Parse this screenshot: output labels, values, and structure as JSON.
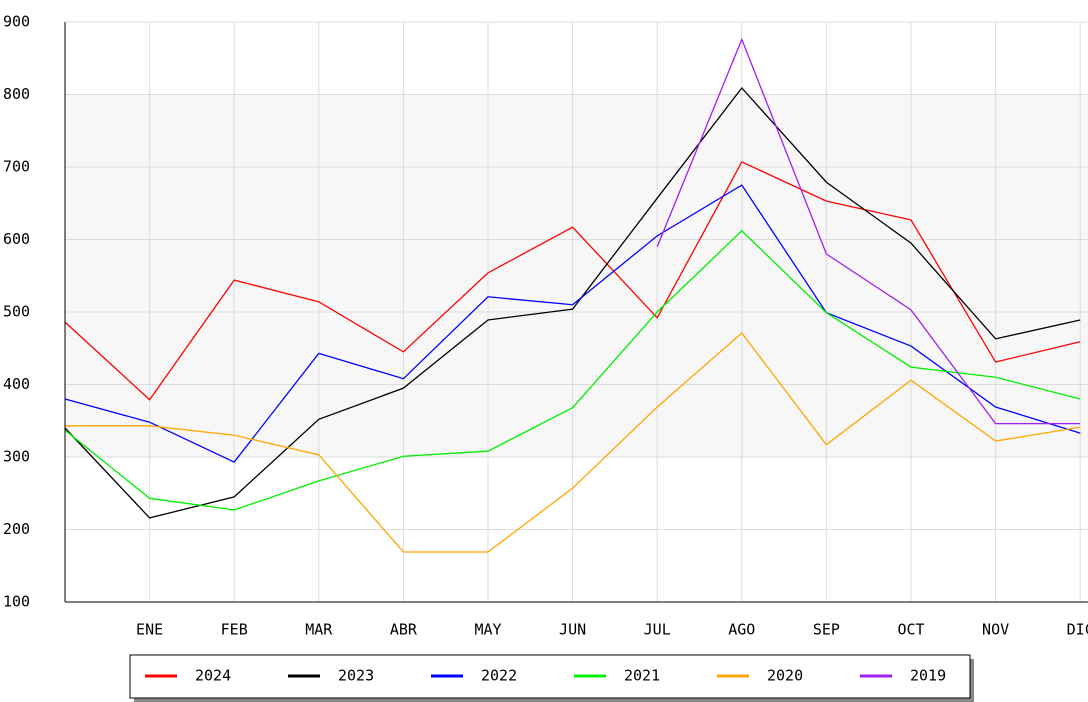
{
  "chart_data": {
    "type": "line",
    "categories": [
      null,
      "ENE",
      "FEB",
      "MAR",
      "ABR",
      "MAY",
      "JUN",
      "JUL",
      "AGO",
      "SEP",
      "OCT",
      "NOV",
      "DIC"
    ],
    "series": [
      {
        "name": "2024",
        "color": "#ff0000",
        "values": [
          486,
          379,
          544,
          514,
          445,
          554,
          617,
          492,
          707,
          653,
          627,
          431,
          459
        ]
      },
      {
        "name": "2023",
        "color": "#000000",
        "values": [
          340,
          216,
          245,
          352,
          395,
          489,
          504,
          657,
          809,
          679,
          595,
          463,
          489
        ]
      },
      {
        "name": "2022",
        "color": "#0000ff",
        "values": [
          380,
          348,
          293,
          443,
          408,
          521,
          510,
          605,
          675,
          499,
          453,
          369,
          333
        ]
      },
      {
        "name": "2021",
        "color": "#00ee00",
        "values": [
          337,
          243,
          227,
          267,
          301,
          308,
          368,
          500,
          612,
          499,
          424,
          410,
          380
        ]
      },
      {
        "name": "2020",
        "color": "#ffa500",
        "values": [
          343,
          343,
          330,
          303,
          169,
          169,
          257,
          369,
          471,
          317,
          406,
          322,
          341
        ]
      },
      {
        "name": "2019",
        "color": "#a020f0",
        "values": [
          null,
          null,
          null,
          null,
          null,
          null,
          null,
          590,
          876,
          580,
          503,
          346,
          346
        ]
      }
    ],
    "ylim": [
      100,
      900
    ],
    "yticks": [
      100,
      200,
      300,
      400,
      500,
      600,
      700,
      800,
      900
    ],
    "grid": true
  }
}
